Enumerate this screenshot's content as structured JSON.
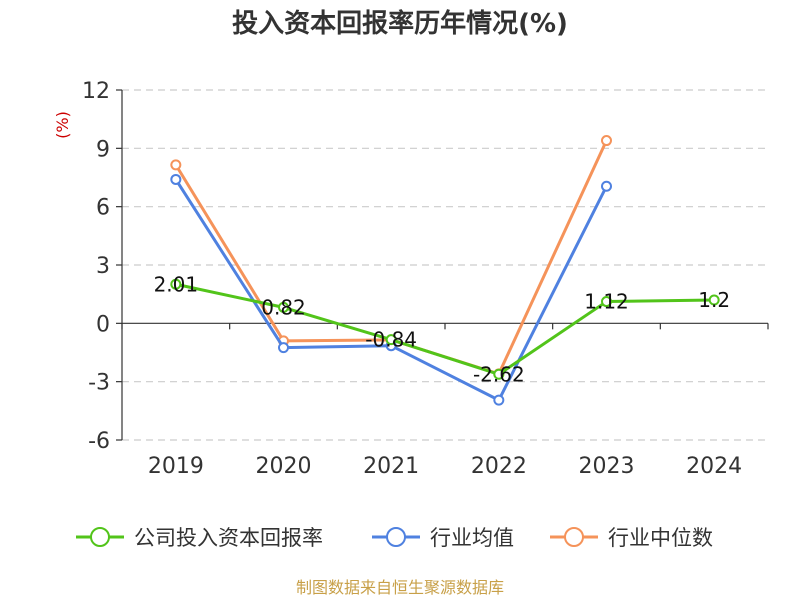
{
  "chart_data": {
    "type": "line",
    "title": "投入资本回报率历年情况(%)",
    "ylabel": "(%)",
    "xlabel": "",
    "categories": [
      "2019",
      "2020",
      "2021",
      "2022",
      "2023",
      "2024"
    ],
    "ylim": [
      -6,
      12
    ],
    "yticks": [
      12,
      9,
      6,
      3,
      0,
      -3,
      -6
    ],
    "grid": true,
    "legend_position": "bottom",
    "series": [
      {
        "name": "公司投入资本回报率",
        "color": "#52c41a",
        "values": [
          2.01,
          0.82,
          -0.84,
          -2.62,
          1.12,
          1.2
        ],
        "labels": [
          "2.01",
          "0.82",
          "-0.84",
          "-2.62",
          "1.12",
          "1.2"
        ]
      },
      {
        "name": "行业均值",
        "color": "#4f81e0",
        "values": [
          7.4,
          -1.25,
          -1.15,
          -3.95,
          7.05,
          null
        ]
      },
      {
        "name": "行业中位数",
        "color": "#f5935a",
        "values": [
          8.15,
          -0.9,
          -0.85,
          -2.6,
          9.4,
          null
        ]
      }
    ]
  },
  "source": "制图数据来自恒生聚源数据库"
}
